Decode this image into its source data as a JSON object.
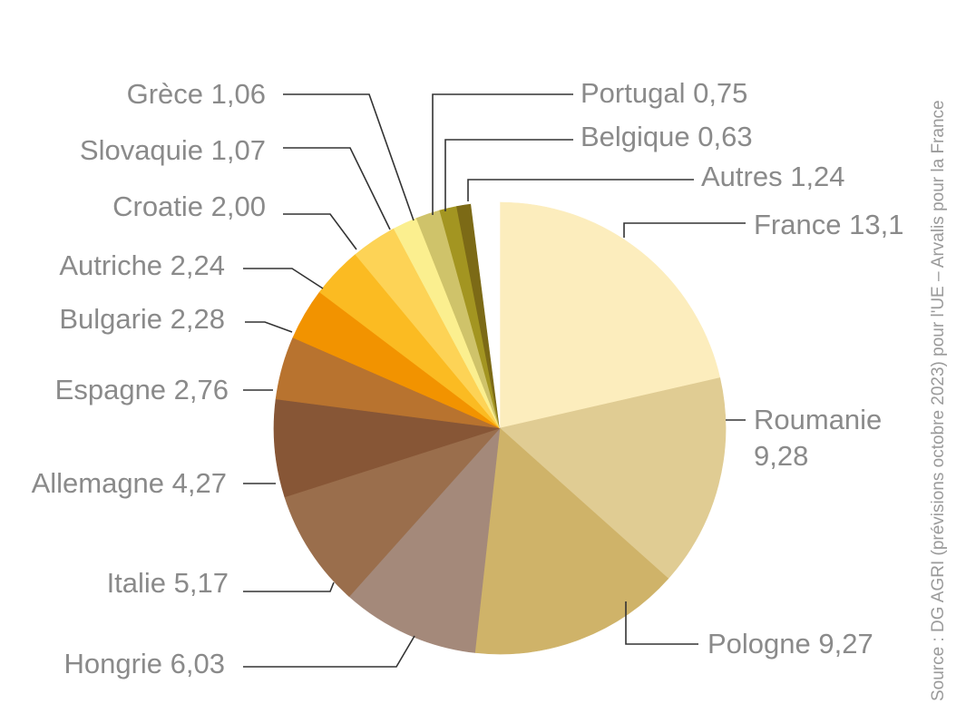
{
  "source": "Source : DG AGRI (prévisions octobre 2023) pour l'UE – Arvalis pour la France",
  "chart_data": {
    "type": "pie",
    "start": "12 o'clock, clockwise",
    "slices": [
      {
        "name": "France",
        "value": 13.1,
        "label": "France 13,1",
        "color": "#fcedbd"
      },
      {
        "name": "Roumanie",
        "value": 9.28,
        "label": [
          "Roumanie",
          "9,28"
        ],
        "color": "#e0cc93"
      },
      {
        "name": "Pologne",
        "value": 9.27,
        "label": "Pologne 9,27",
        "color": "#cfb369"
      },
      {
        "name": "Hongrie",
        "value": 6.03,
        "label": "Hongrie 6,03",
        "color": "#a4897a"
      },
      {
        "name": "Italie",
        "value": 5.17,
        "label": "Italie 5,17",
        "color": "#9a6e4c"
      },
      {
        "name": "Allemagne",
        "value": 4.27,
        "label": "Allemagne 4,27",
        "color": "#875636"
      },
      {
        "name": "Espagne",
        "value": 2.76,
        "label": "Espagne 2,76",
        "color": "#b8732f"
      },
      {
        "name": "Bulgarie",
        "value": 2.28,
        "label": "Bulgarie 2,28",
        "color": "#f29300"
      },
      {
        "name": "Autriche",
        "value": 2.24,
        "label": "Autriche 2,24",
        "color": "#fbbb22"
      },
      {
        "name": "Croatie",
        "value": 2.0,
        "label": "Croatie 2,00",
        "color": "#fdd356"
      },
      {
        "name": "Slovaquie",
        "value": 1.07,
        "label": "Slovaquie 1,07",
        "color": "#fbef8f"
      },
      {
        "name": "Grèce",
        "value": 1.06,
        "label": "Grèce 1,06",
        "color": "#cfc36a"
      },
      {
        "name": "Portugal",
        "value": 0.75,
        "label": "Portugal 0,75",
        "color": "#a39521"
      },
      {
        "name": "Belgique",
        "value": 0.63,
        "label": "Belgique 0,63",
        "color": "#7c6a16"
      },
      {
        "name": "Autres",
        "value": 1.24,
        "label": "Autres 1,24",
        "color": "#ffffff"
      }
    ]
  }
}
